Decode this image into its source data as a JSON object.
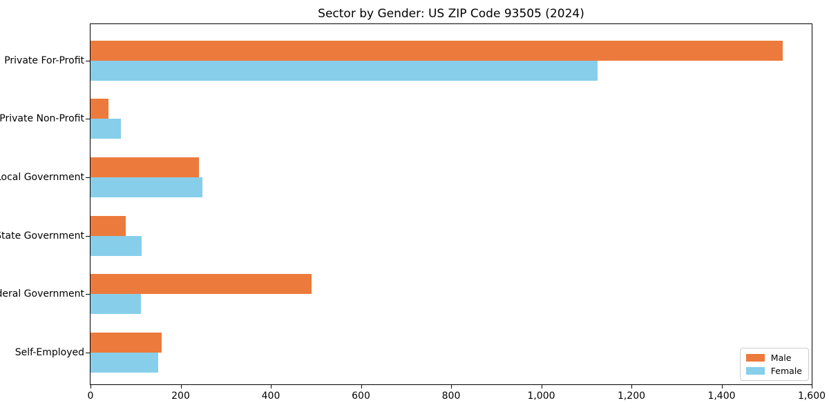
{
  "chart_data": {
    "type": "bar",
    "orientation": "horizontal",
    "title": "Sector by Gender: US ZIP Code 93505 (2024)",
    "categories": [
      "Private For-Profit",
      "Private Non-Profit",
      "Local Government",
      "State Government",
      "Federal Government",
      "Self-Employed"
    ],
    "series": [
      {
        "name": "Male",
        "color": "#EC7A3C",
        "values": [
          1535,
          40,
          240,
          78,
          490,
          158
        ]
      },
      {
        "name": "Female",
        "color": "#87CEEB",
        "values": [
          1125,
          67,
          248,
          113,
          112,
          150
        ]
      }
    ],
    "xlabel": "",
    "ylabel": "",
    "xlim": [
      0,
      1600
    ],
    "x_ticks": [
      {
        "value": 0,
        "label": "0"
      },
      {
        "value": 200,
        "label": "200"
      },
      {
        "value": 400,
        "label": "400"
      },
      {
        "value": 600,
        "label": "600"
      },
      {
        "value": 800,
        "label": "800"
      },
      {
        "value": 1000,
        "label": "1,000"
      },
      {
        "value": 1200,
        "label": "1,200"
      },
      {
        "value": 1400,
        "label": "1,400"
      },
      {
        "value": 1600,
        "label": "1,600"
      }
    ],
    "grid": false,
    "legend": {
      "position": "lower right",
      "entries": [
        "Male",
        "Female"
      ]
    },
    "colors": {
      "background": "#ffffff",
      "axis": "#000000",
      "male": "#EC7A3C",
      "female": "#87CEEB"
    }
  }
}
